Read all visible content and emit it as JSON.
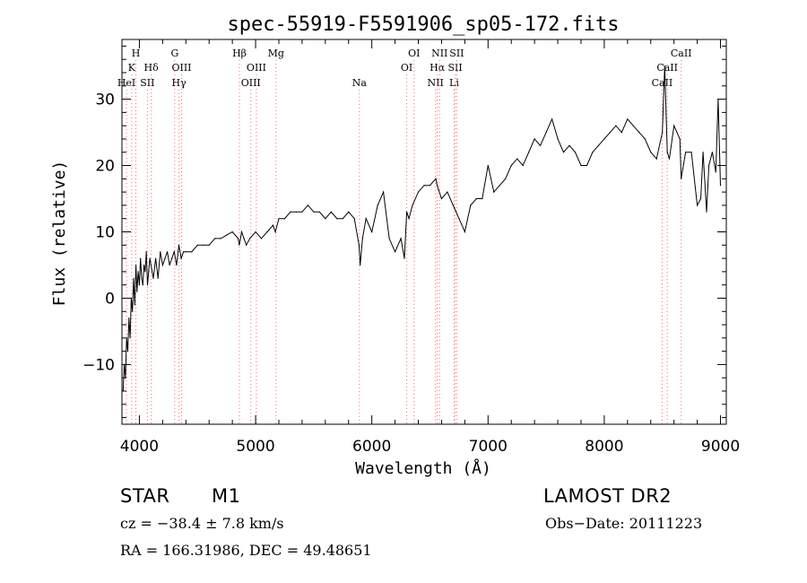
{
  "chart_data": {
    "type": "line",
    "title": "spec-55919-F5591906_sp05-172.fits",
    "xlabel": "Wavelength (Å)",
    "ylabel": "Flux (relative)",
    "xlim": [
      3850,
      9050
    ],
    "ylim": [
      -19,
      39
    ],
    "x_ticks": [
      4000,
      5000,
      6000,
      7000,
      8000,
      9000
    ],
    "y_ticks": [
      -10,
      0,
      10,
      20,
      30
    ],
    "grid": false,
    "series": [
      {
        "x": [
          3860,
          3870,
          3880,
          3890,
          3900,
          3910,
          3920,
          3930,
          3940,
          3950,
          3960,
          3970,
          3980,
          3990,
          4000,
          4010,
          4020,
          4030,
          4040,
          4050,
          4060,
          4070,
          4080,
          4090,
          4100,
          4120,
          4140,
          4160,
          4180,
          4200,
          4220,
          4240,
          4260,
          4280,
          4300,
          4320,
          4340,
          4360,
          4380,
          4400,
          4450,
          4500,
          4550,
          4600,
          4650,
          4700,
          4750,
          4800,
          4850,
          4860,
          4880,
          4900,
          4920,
          4950,
          5000,
          5050,
          5100,
          5150,
          5170,
          5200,
          5250,
          5300,
          5350,
          5400,
          5450,
          5500,
          5550,
          5600,
          5650,
          5700,
          5750,
          5800,
          5850,
          5890,
          5900,
          5920,
          5950,
          6000,
          6050,
          6100,
          6150,
          6200,
          6250,
          6280,
          6300,
          6320,
          6350,
          6400,
          6450,
          6500,
          6550,
          6563,
          6600,
          6650,
          6700,
          6750,
          6800,
          6850,
          6900,
          6950,
          7000,
          7050,
          7100,
          7150,
          7200,
          7250,
          7300,
          7350,
          7400,
          7450,
          7500,
          7550,
          7600,
          7650,
          7700,
          7750,
          7800,
          7850,
          7900,
          7950,
          8000,
          8050,
          8100,
          8150,
          8200,
          8250,
          8300,
          8350,
          8400,
          8450,
          8500,
          8520,
          8542,
          8560,
          8600,
          8650,
          8662,
          8700,
          8750,
          8800,
          8830,
          8850,
          8880,
          8900,
          8930,
          8960,
          8980,
          9000
        ],
        "values": [
          -14,
          -10,
          -12,
          -6,
          -8,
          -3,
          -6,
          0,
          -2,
          3,
          -1,
          5,
          1,
          4,
          2,
          6,
          3,
          2,
          5,
          4,
          7,
          2,
          4,
          6,
          5,
          3,
          6,
          3,
          7,
          5,
          6,
          7,
          5,
          6,
          7,
          5,
          8,
          6,
          7,
          7,
          7,
          8,
          8,
          8,
          9,
          9,
          9.5,
          10,
          9,
          8,
          10,
          9,
          8,
          9,
          10,
          9,
          10,
          11,
          10,
          12,
          12,
          13,
          13,
          13,
          14,
          13,
          13,
          12,
          13,
          12,
          12,
          13,
          12,
          8,
          5,
          9,
          12,
          10,
          14,
          16,
          9,
          7,
          9,
          6,
          13,
          12,
          14,
          16,
          17,
          17,
          18,
          17,
          15,
          16,
          14,
          12,
          10,
          14,
          15,
          15,
          20,
          16,
          17,
          18,
          20,
          21,
          20,
          22,
          24,
          23,
          25,
          27,
          24,
          22,
          23,
          22,
          20,
          20,
          22,
          23,
          24,
          25,
          26,
          25,
          27,
          26,
          25,
          24,
          22,
          21,
          25,
          35,
          22,
          21,
          26,
          24,
          18,
          22,
          22,
          14,
          15,
          22,
          13,
          20,
          22,
          19,
          30,
          17
        ]
      }
    ],
    "line_markers": [
      {
        "label": "HeI",
        "x": 3889,
        "row": 3
      },
      {
        "label": "K",
        "x": 3934,
        "row": 2
      },
      {
        "label": "H",
        "x": 3970,
        "row": 1
      },
      {
        "label": "SII",
        "x": 4069,
        "row": 3
      },
      {
        "label": "Hδ",
        "x": 4102,
        "row": 2
      },
      {
        "label": "G",
        "x": 4304,
        "row": 1
      },
      {
        "label": "Hγ",
        "x": 4341,
        "row": 3
      },
      {
        "label": "OIII",
        "x": 4363,
        "row": 2
      },
      {
        "label": "Hβ",
        "x": 4861,
        "row": 1
      },
      {
        "label": "OIII",
        "x": 4959,
        "row": 3
      },
      {
        "label": "OIII",
        "x": 5007,
        "row": 2
      },
      {
        "label": "Mg",
        "x": 5175,
        "row": 1
      },
      {
        "label": "Na",
        "x": 5893,
        "row": 3
      },
      {
        "label": "OI",
        "x": 6300,
        "row": 2
      },
      {
        "label": "OI",
        "x": 6364,
        "row": 1
      },
      {
        "label": "NII",
        "x": 6548,
        "row": 3
      },
      {
        "label": "Hα",
        "x": 6563,
        "row": 2
      },
      {
        "label": "NII",
        "x": 6583,
        "row": 1
      },
      {
        "label": "SII",
        "x": 6717,
        "row": 2
      },
      {
        "label": "Li",
        "x": 6708,
        "row": 3
      },
      {
        "label": "SII",
        "x": 6731,
        "row": 1
      },
      {
        "label": "CaII",
        "x": 8498,
        "row": 3
      },
      {
        "label": "CaII",
        "x": 8542,
        "row": 2
      },
      {
        "label": "CaII",
        "x": 8662,
        "row": 1
      }
    ]
  },
  "info": {
    "class": "STAR",
    "subclass": "M1",
    "survey": "LAMOST DR2",
    "cz": "cz = −38.4 ± 7.8 km/s",
    "obs_date": "Obs−Date: 20111223",
    "coords": "RA = 166.31986, DEC =  49.48651"
  }
}
